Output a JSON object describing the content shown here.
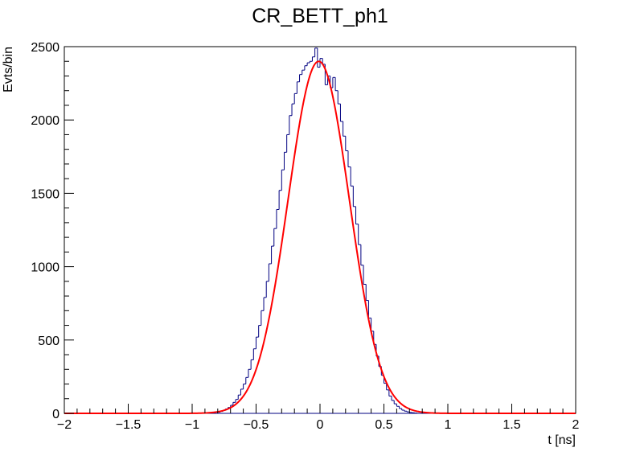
{
  "chart_data": {
    "type": "histogram",
    "title": "CR_BETT_ph1",
    "xlabel": "t [ns]",
    "ylabel": "Evts/bin",
    "xlim": [
      -2,
      2
    ],
    "ylim": [
      0,
      2500
    ],
    "x_ticks": [
      -2,
      -1.5,
      -1,
      -0.5,
      0,
      0.5,
      1,
      1.5,
      2
    ],
    "x_tick_labels": [
      "−2",
      "−1.5",
      "−1",
      "−0.5",
      "0",
      "0.5",
      "1",
      "1.5",
      "2"
    ],
    "y_ticks": [
      0,
      500,
      1000,
      1500,
      2000,
      2500
    ],
    "y_tick_labels": [
      "0",
      "500",
      "1000",
      "1500",
      "2000",
      "2500"
    ],
    "grid": false,
    "colors": {
      "histogram": "#000080",
      "fit": "#ff0000"
    },
    "histogram": {
      "bin_width": 0.02,
      "bins": [
        {
          "x": -0.8,
          "y": 8
        },
        {
          "x": -0.78,
          "y": 13
        },
        {
          "x": -0.76,
          "y": 20
        },
        {
          "x": -0.74,
          "y": 30
        },
        {
          "x": -0.72,
          "y": 40
        },
        {
          "x": -0.7,
          "y": 55
        },
        {
          "x": -0.68,
          "y": 75
        },
        {
          "x": -0.66,
          "y": 95
        },
        {
          "x": -0.64,
          "y": 125
        },
        {
          "x": -0.62,
          "y": 165
        },
        {
          "x": -0.6,
          "y": 200
        },
        {
          "x": -0.58,
          "y": 245
        },
        {
          "x": -0.56,
          "y": 300
        },
        {
          "x": -0.54,
          "y": 365
        },
        {
          "x": -0.52,
          "y": 440
        },
        {
          "x": -0.5,
          "y": 520
        },
        {
          "x": -0.48,
          "y": 600
        },
        {
          "x": -0.46,
          "y": 700
        },
        {
          "x": -0.44,
          "y": 790
        },
        {
          "x": -0.42,
          "y": 900
        },
        {
          "x": -0.4,
          "y": 1020
        },
        {
          "x": -0.38,
          "y": 1140
        },
        {
          "x": -0.36,
          "y": 1260
        },
        {
          "x": -0.34,
          "y": 1390
        },
        {
          "x": -0.32,
          "y": 1520
        },
        {
          "x": -0.3,
          "y": 1660
        },
        {
          "x": -0.28,
          "y": 1780
        },
        {
          "x": -0.26,
          "y": 1900
        },
        {
          "x": -0.24,
          "y": 2030
        },
        {
          "x": -0.22,
          "y": 2110
        },
        {
          "x": -0.2,
          "y": 2180
        },
        {
          "x": -0.18,
          "y": 2260
        },
        {
          "x": -0.16,
          "y": 2310
        },
        {
          "x": -0.14,
          "y": 2340
        },
        {
          "x": -0.12,
          "y": 2370
        },
        {
          "x": -0.1,
          "y": 2390
        },
        {
          "x": -0.08,
          "y": 2400
        },
        {
          "x": -0.06,
          "y": 2430
        },
        {
          "x": -0.04,
          "y": 2490
        },
        {
          "x": -0.02,
          "y": 2360
        },
        {
          "x": 0.0,
          "y": 2420
        },
        {
          "x": 0.02,
          "y": 2380
        },
        {
          "x": 0.04,
          "y": 2240
        },
        {
          "x": 0.06,
          "y": 2300
        },
        {
          "x": 0.08,
          "y": 2220
        },
        {
          "x": 0.1,
          "y": 2290
        },
        {
          "x": 0.12,
          "y": 2200
        },
        {
          "x": 0.14,
          "y": 2110
        },
        {
          "x": 0.16,
          "y": 1990
        },
        {
          "x": 0.18,
          "y": 1890
        },
        {
          "x": 0.2,
          "y": 1790
        },
        {
          "x": 0.22,
          "y": 1680
        },
        {
          "x": 0.24,
          "y": 1550
        },
        {
          "x": 0.26,
          "y": 1410
        },
        {
          "x": 0.28,
          "y": 1290
        },
        {
          "x": 0.3,
          "y": 1150
        },
        {
          "x": 0.32,
          "y": 1010
        },
        {
          "x": 0.34,
          "y": 880
        },
        {
          "x": 0.36,
          "y": 770
        },
        {
          "x": 0.38,
          "y": 650
        },
        {
          "x": 0.4,
          "y": 560
        },
        {
          "x": 0.42,
          "y": 470
        },
        {
          "x": 0.44,
          "y": 390
        },
        {
          "x": 0.46,
          "y": 320
        },
        {
          "x": 0.48,
          "y": 260
        },
        {
          "x": 0.5,
          "y": 205
        },
        {
          "x": 0.52,
          "y": 160
        },
        {
          "x": 0.54,
          "y": 118
        },
        {
          "x": 0.56,
          "y": 88
        },
        {
          "x": 0.58,
          "y": 65
        },
        {
          "x": 0.6,
          "y": 48
        },
        {
          "x": 0.62,
          "y": 33
        },
        {
          "x": 0.64,
          "y": 22
        },
        {
          "x": 0.66,
          "y": 15
        },
        {
          "x": 0.68,
          "y": 10
        },
        {
          "x": 0.7,
          "y": 6
        },
        {
          "x": 0.72,
          "y": 4
        },
        {
          "x": 0.74,
          "y": 2
        }
      ]
    },
    "fit": {
      "type": "gaussian",
      "amplitude": 2400,
      "mean": -0.01,
      "sigma": 0.24
    }
  }
}
